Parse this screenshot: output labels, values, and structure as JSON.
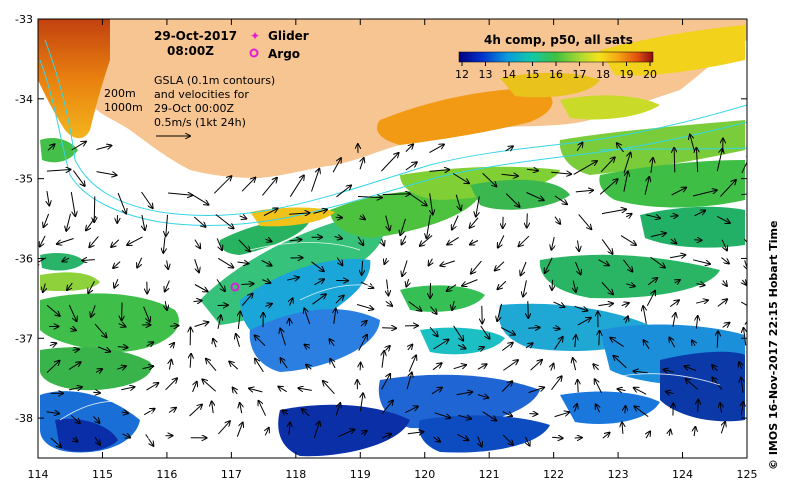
{
  "map": {
    "date": "29-Oct-2017",
    "time": "08:00Z",
    "legend_glider": "Glider",
    "legend_argo": "Argo",
    "gsla_line1": "GSLA (0.1m contours)",
    "gsla_line2": "and velocities for",
    "gsla_line3": "29-Oct 00:00Z",
    "scale_label": "0.5m/s (1kt 24h)",
    "contour_200": "200m",
    "contour_1000": "1000m",
    "colorbar_title": "4h comp, p50, all sats",
    "colorbar_ticks": [
      "12",
      "13",
      "14",
      "15",
      "16",
      "17",
      "18",
      "19",
      "20"
    ],
    "credit": "©  IMOS 16-Nov-2017 22:15 Hobart Time",
    "x_ticks": [
      "114",
      "115",
      "116",
      "117",
      "118",
      "119",
      "120",
      "121",
      "122",
      "123",
      "124",
      "125"
    ],
    "y_ticks": [
      "-33",
      "-34",
      "-35",
      "-36",
      "-37",
      "-38"
    ],
    "colors": {
      "land": "#f7c592",
      "shelf_contour": "#35d6e6",
      "glider": "#e21bd4",
      "argo": "#e21bd4"
    },
    "argo_position": {
      "lon": 117.05,
      "lat": -36.35
    }
  }
}
